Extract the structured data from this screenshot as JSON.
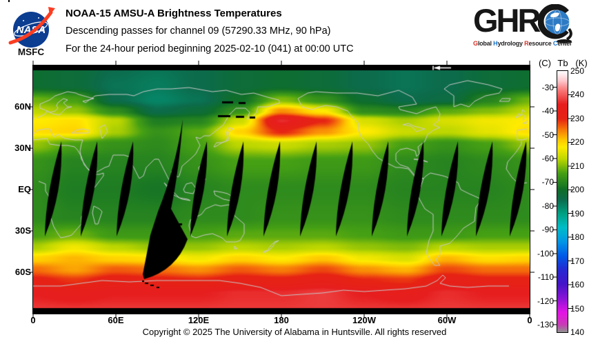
{
  "header": {
    "nasa_text": "NASA",
    "msfc_label": "MSFC",
    "title_line1": "NOAA-15 AMSU-A Brightness Temperatures",
    "title_line2": "Descending passes for channel 09 (57290.33 MHz, 90 hPa)",
    "title_line3": "For the 24-hour period beginning 2025-02-10 (041) at 00:00 UTC",
    "ghrc_acronym": "GHR",
    "ghrc_tagline": [
      {
        "initial": "G",
        "rest": "lobal ",
        "color": "#d93025"
      },
      {
        "initial": "H",
        "rest": "ydrology ",
        "color": "#1a73c9"
      },
      {
        "initial": "R",
        "rest": "esource ",
        "color": "#d93025"
      },
      {
        "initial": "C",
        "rest": "enter",
        "color": "#1a73c9"
      }
    ]
  },
  "footer": {
    "copyright": "Copyright © 2025 The University of Alabama in Huntsville.  All rights reserved"
  },
  "chart_data": {
    "type": "heatmap",
    "title": "NOAA-15 AMSU-A Brightness Temperatures",
    "subtitle": "Descending passes for channel 09 (57290.33 MHz, 90 hPa); 24-hour period beginning 2025-02-10 (041) at 00:00 UTC",
    "satellite": "NOAA-15",
    "instrument": "AMSU-A",
    "channel": "09",
    "frequency_mhz": 57290.33,
    "pressure_level_hpa": 90,
    "date": "2025-02-10",
    "day_of_year": "041",
    "start_time_utc": "00:00",
    "x_ticks": [
      "0",
      "60E",
      "120E",
      "180",
      "120W",
      "60W",
      "0"
    ],
    "x_tick_lons_deg": [
      0,
      60,
      120,
      180,
      240,
      300,
      360
    ],
    "y_ticks": [
      "60N",
      "30N",
      "EQ",
      "30S",
      "60S"
    ],
    "y_tick_lats_deg": [
      60,
      30,
      0,
      -30,
      -60
    ],
    "map_extent": {
      "lon_deg": [
        0,
        360
      ],
      "lat_deg": [
        90,
        -90
      ]
    },
    "colorbar": {
      "header": [
        "(C)",
        "Tb",
        "(K)"
      ],
      "units": "K",
      "range_k": [
        140,
        250
      ],
      "kelvin_ticks": [
        250,
        240,
        230,
        220,
        210,
        200,
        190,
        180,
        170,
        160,
        150,
        140
      ],
      "celsius_ticks": [
        -30,
        -40,
        -50,
        -60,
        -70,
        -80,
        -90,
        -100,
        -110,
        -120,
        -130
      ],
      "palette_stops": [
        [
          250,
          [
            255,
            255,
            255
          ]
        ],
        [
          246,
          [
            255,
            200,
            205
          ]
        ],
        [
          242,
          [
            250,
            120,
            120
          ]
        ],
        [
          236,
          [
            230,
            30,
            30
          ]
        ],
        [
          230,
          [
            230,
            35,
            20
          ]
        ],
        [
          226,
          [
            245,
            110,
            10
          ]
        ],
        [
          221,
          [
            255,
            200,
            0
          ]
        ],
        [
          218,
          [
            255,
            235,
            0
          ]
        ],
        [
          213,
          [
            190,
            215,
            0
          ]
        ],
        [
          207,
          [
            70,
            160,
            20
          ]
        ],
        [
          200,
          [
            15,
            110,
            40
          ]
        ],
        [
          196,
          [
            12,
            107,
            75
          ]
        ],
        [
          190,
          [
            0,
            160,
            130
          ]
        ],
        [
          184,
          [
            0,
            190,
            200
          ]
        ],
        [
          178,
          [
            0,
            150,
            230
          ]
        ],
        [
          172,
          [
            0,
            90,
            230
          ]
        ],
        [
          166,
          [
            40,
            40,
            210
          ]
        ],
        [
          160,
          [
            70,
            20,
            200
          ]
        ],
        [
          154,
          [
            140,
            20,
            215
          ]
        ],
        [
          148,
          [
            230,
            20,
            230
          ]
        ],
        [
          143,
          [
            200,
            60,
            180
          ]
        ],
        [
          140,
          [
            145,
            145,
            145
          ]
        ]
      ]
    },
    "tb_grid": {
      "units": "K",
      "lons_deg": [
        0,
        30,
        60,
        90,
        120,
        150,
        180,
        210,
        240,
        270,
        300,
        330,
        360
      ],
      "lats_deg": [
        90,
        75,
        65,
        57,
        50,
        42,
        33,
        20,
        0,
        -20,
        -33,
        -42,
        -50,
        -58,
        -66,
        -75,
        -90
      ],
      "values": [
        [
          199,
          198,
          196,
          195,
          196,
          198,
          199,
          198,
          196,
          195,
          196,
          198,
          199
        ],
        [
          199,
          198,
          195,
          194,
          196,
          198,
          199,
          198,
          196,
          195,
          196,
          198,
          199
        ],
        [
          209,
          207,
          196,
          193,
          195,
          200,
          210,
          205,
          199,
          196,
          197,
          203,
          209
        ],
        [
          213,
          211,
          204,
          196,
          198,
          205,
          224,
          218,
          204,
          203,
          208,
          210,
          213
        ],
        [
          218,
          219,
          213,
          202,
          203,
          214,
          237,
          230,
          215,
          212,
          215,
          217,
          218
        ],
        [
          219,
          220,
          212,
          205,
          208,
          220,
          230,
          224,
          218,
          214,
          213,
          216,
          219
        ],
        [
          211,
          207,
          205,
          204,
          207,
          213,
          214,
          212,
          211,
          207,
          205,
          207,
          211
        ],
        [
          205,
          203,
          203,
          203,
          205,
          207,
          207,
          206,
          206,
          204,
          203,
          204,
          205
        ],
        [
          204,
          202,
          202,
          201,
          203,
          204,
          204,
          204,
          204,
          203,
          203,
          203,
          204
        ],
        [
          204,
          203,
          203,
          203,
          204,
          204,
          205,
          205,
          205,
          204,
          204,
          204,
          204
        ],
        [
          207,
          209,
          206,
          206,
          207,
          208,
          208,
          208,
          207,
          206,
          206,
          207,
          207
        ],
        [
          212,
          217,
          213,
          211,
          211,
          213,
          212,
          213,
          211,
          210,
          213,
          212,
          212
        ],
        [
          220,
          222,
          220,
          219,
          217,
          220,
          218,
          221,
          217,
          215,
          222,
          219,
          220
        ],
        [
          226,
          223,
          227,
          226,
          224,
          227,
          225,
          228,
          224,
          222,
          228,
          226,
          226
        ],
        [
          231,
          229,
          232,
          231,
          230,
          232,
          231,
          233,
          230,
          229,
          233,
          231,
          231
        ],
        [
          236,
          235,
          236,
          236,
          236,
          237,
          237,
          238,
          236,
          235,
          237,
          236,
          236
        ],
        [
          238,
          238,
          238,
          238,
          238,
          238,
          238,
          238,
          238,
          238,
          238,
          238,
          238
        ]
      ]
    },
    "data_gaps": {
      "color": "#000000",
      "descending_swath_gap_count": 14,
      "polar_edge_bars": true
    },
    "start_marker": {
      "symbol": "left-arrow-to-bar",
      "lon_deg": 290
    }
  }
}
